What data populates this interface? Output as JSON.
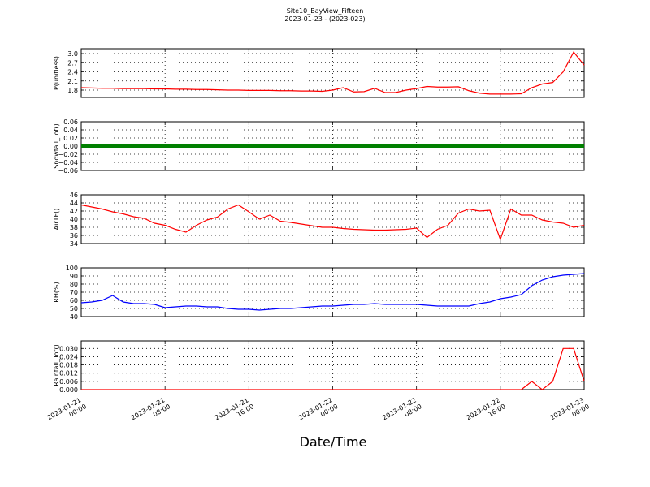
{
  "figure": {
    "title": "Site10_BayView_Fifteen",
    "subtitle": "2023-01-23 - (2023-023)",
    "xlabel": "Date/Time"
  },
  "chart_data": [
    {
      "type": "line",
      "ylabel": "P(unitless)",
      "color": "#ff0000",
      "xlim": [
        "2023-01-21 00:00",
        "2023-01-23 00:00"
      ],
      "xticks": [
        "2023-01-21 00:00",
        "2023-01-21 08:00",
        "2023-01-21 16:00",
        "2023-01-22 00:00",
        "2023-01-22 08:00",
        "2023-01-22 16:00",
        "2023-01-23 00:00"
      ],
      "ylim": [
        1.56,
        3.16
      ],
      "yticks": [
        1.8,
        2.1,
        2.4,
        2.7,
        {
          "value": 3,
          "label": "3.0"
        }
      ],
      "grid": true,
      "x": [
        "2023-01-21 00:00",
        "2023-01-21 01:00",
        "2023-01-21 02:00",
        "2023-01-21 03:00",
        "2023-01-21 04:00",
        "2023-01-21 05:00",
        "2023-01-21 06:00",
        "2023-01-21 07:00",
        "2023-01-21 08:00",
        "2023-01-21 09:00",
        "2023-01-21 10:00",
        "2023-01-21 11:00",
        "2023-01-21 12:00",
        "2023-01-21 13:00",
        "2023-01-21 14:00",
        "2023-01-21 15:00",
        "2023-01-21 16:00",
        "2023-01-21 17:00",
        "2023-01-21 18:00",
        "2023-01-21 19:00",
        "2023-01-21 20:00",
        "2023-01-21 21:00",
        "2023-01-21 22:00",
        "2023-01-21 23:00",
        "2023-01-22 00:00",
        "2023-01-22 01:00",
        "2023-01-22 02:00",
        "2023-01-22 03:00",
        "2023-01-22 04:00",
        "2023-01-22 05:00",
        "2023-01-22 06:00",
        "2023-01-22 07:00",
        "2023-01-22 08:00",
        "2023-01-22 09:00",
        "2023-01-22 10:00",
        "2023-01-22 11:00",
        "2023-01-22 12:00",
        "2023-01-22 13:00",
        "2023-01-22 14:00",
        "2023-01-22 15:00",
        "2023-01-22 16:00",
        "2023-01-22 17:00",
        "2023-01-22 18:00",
        "2023-01-22 19:00",
        "2023-01-22 20:00",
        "2023-01-22 21:00",
        "2023-01-22 22:00",
        "2023-01-22 23:00",
        "2023-01-23 00:00"
      ],
      "values": [
        1.88,
        1.87,
        1.86,
        1.86,
        1.85,
        1.85,
        1.85,
        1.84,
        1.84,
        1.83,
        1.83,
        1.82,
        1.82,
        1.81,
        1.8,
        1.8,
        1.79,
        1.79,
        1.79,
        1.78,
        1.78,
        1.77,
        1.77,
        1.76,
        1.8,
        1.88,
        1.74,
        1.75,
        1.86,
        1.72,
        1.72,
        1.8,
        1.85,
        1.92,
        1.9,
        1.9,
        1.91,
        1.78,
        1.7,
        1.67,
        1.67,
        1.67,
        1.68,
        1.88,
        2.0,
        2.05,
        2.4,
        3.05,
        2.62
      ]
    },
    {
      "type": "line",
      "ylabel": "Snowfall_Tot()",
      "color": "#008000",
      "xlim": [
        "2023-01-21 00:00",
        "2023-01-23 00:00"
      ],
      "xticks": [
        "2023-01-21 00:00",
        "2023-01-21 08:00",
        "2023-01-21 16:00",
        "2023-01-22 00:00",
        "2023-01-22 08:00",
        "2023-01-22 16:00",
        "2023-01-23 00:00"
      ],
      "ylim": [
        -0.06,
        0.06
      ],
      "yticks": [
        {
          "value": -0.06,
          "label": "−0.06"
        },
        {
          "value": -0.04,
          "label": "−0.04"
        },
        {
          "value": -0.02,
          "label": "−0.02"
        },
        {
          "value": 0,
          "label": "0.00"
        },
        0.02,
        0.04,
        0.06
      ],
      "grid": true,
      "x": [
        "2023-01-21 00:00",
        "2023-01-21 01:00",
        "2023-01-21 02:00",
        "2023-01-21 03:00",
        "2023-01-21 04:00",
        "2023-01-21 05:00",
        "2023-01-21 06:00",
        "2023-01-21 07:00",
        "2023-01-21 08:00",
        "2023-01-21 09:00",
        "2023-01-21 10:00",
        "2023-01-21 11:00",
        "2023-01-21 12:00",
        "2023-01-21 13:00",
        "2023-01-21 14:00",
        "2023-01-21 15:00",
        "2023-01-21 16:00",
        "2023-01-21 17:00",
        "2023-01-21 18:00",
        "2023-01-21 19:00",
        "2023-01-21 20:00",
        "2023-01-21 21:00",
        "2023-01-21 22:00",
        "2023-01-21 23:00",
        "2023-01-22 00:00",
        "2023-01-22 01:00",
        "2023-01-22 02:00",
        "2023-01-22 03:00",
        "2023-01-22 04:00",
        "2023-01-22 05:00",
        "2023-01-22 06:00",
        "2023-01-22 07:00",
        "2023-01-22 08:00",
        "2023-01-22 09:00",
        "2023-01-22 10:00",
        "2023-01-22 11:00",
        "2023-01-22 12:00",
        "2023-01-22 13:00",
        "2023-01-22 14:00",
        "2023-01-22 15:00",
        "2023-01-22 16:00",
        "2023-01-22 17:00",
        "2023-01-22 18:00",
        "2023-01-22 19:00",
        "2023-01-22 20:00",
        "2023-01-22 21:00",
        "2023-01-22 22:00",
        "2023-01-22 23:00",
        "2023-01-23 00:00"
      ],
      "values": [
        0,
        0,
        0,
        0,
        0,
        0,
        0,
        0,
        0,
        0,
        0,
        0,
        0,
        0,
        0,
        0,
        0,
        0,
        0,
        0,
        0,
        0,
        0,
        0,
        0,
        0,
        0,
        0,
        0,
        0,
        0,
        0,
        0,
        0,
        0,
        0,
        0,
        0,
        0,
        0,
        0,
        0,
        0,
        0,
        0,
        0,
        0,
        0,
        0
      ]
    },
    {
      "type": "line",
      "ylabel": "AirTF()",
      "color": "#ff0000",
      "xlim": [
        "2023-01-21 00:00",
        "2023-01-23 00:00"
      ],
      "xticks": [
        "2023-01-21 00:00",
        "2023-01-21 08:00",
        "2023-01-21 16:00",
        "2023-01-22 00:00",
        "2023-01-22 08:00",
        "2023-01-22 16:00",
        "2023-01-23 00:00"
      ],
      "ylim": [
        34,
        46
      ],
      "yticks": [
        34,
        36,
        38,
        40,
        42,
        44,
        46
      ],
      "grid": true,
      "x": [
        "2023-01-21 00:00",
        "2023-01-21 01:00",
        "2023-01-21 02:00",
        "2023-01-21 03:00",
        "2023-01-21 04:00",
        "2023-01-21 05:00",
        "2023-01-21 06:00",
        "2023-01-21 07:00",
        "2023-01-21 08:00",
        "2023-01-21 09:00",
        "2023-01-21 10:00",
        "2023-01-21 11:00",
        "2023-01-21 12:00",
        "2023-01-21 13:00",
        "2023-01-21 14:00",
        "2023-01-21 15:00",
        "2023-01-21 16:00",
        "2023-01-21 17:00",
        "2023-01-21 18:00",
        "2023-01-21 19:00",
        "2023-01-21 20:00",
        "2023-01-21 21:00",
        "2023-01-21 22:00",
        "2023-01-21 23:00",
        "2023-01-22 00:00",
        "2023-01-22 01:00",
        "2023-01-22 02:00",
        "2023-01-22 03:00",
        "2023-01-22 04:00",
        "2023-01-22 05:00",
        "2023-01-22 06:00",
        "2023-01-22 07:00",
        "2023-01-22 08:00",
        "2023-01-22 09:00",
        "2023-01-22 10:00",
        "2023-01-22 11:00",
        "2023-01-22 12:00",
        "2023-01-22 13:00",
        "2023-01-22 14:00",
        "2023-01-22 15:00",
        "2023-01-22 16:00",
        "2023-01-22 17:00",
        "2023-01-22 18:00",
        "2023-01-22 19:00",
        "2023-01-22 20:00",
        "2023-01-22 21:00",
        "2023-01-22 22:00",
        "2023-01-22 23:00",
        "2023-01-23 00:00"
      ],
      "values": [
        43.5,
        43,
        42.5,
        41.8,
        41.3,
        40.6,
        40.2,
        39,
        38.5,
        37.5,
        36.8,
        38.5,
        39.8,
        40.5,
        42.5,
        43.5,
        41.8,
        40,
        41,
        39.5,
        39.2,
        38.8,
        38.4,
        38,
        38,
        37.7,
        37.5,
        37.4,
        37.3,
        37.3,
        37.4,
        37.5,
        37.8,
        35.5,
        37.5,
        38.5,
        41.5,
        42.5,
        42,
        42.2,
        35,
        42.5,
        41,
        41,
        39.8,
        39.3,
        39,
        38,
        38.5
      ]
    },
    {
      "type": "line",
      "ylabel": "RH(%)",
      "color": "#0000ff",
      "xlim": [
        "2023-01-21 00:00",
        "2023-01-23 00:00"
      ],
      "xticks": [
        "2023-01-21 00:00",
        "2023-01-21 08:00",
        "2023-01-21 16:00",
        "2023-01-22 00:00",
        "2023-01-22 08:00",
        "2023-01-22 16:00",
        "2023-01-23 00:00"
      ],
      "ylim": [
        40,
        100
      ],
      "yticks": [
        40,
        50,
        60,
        70,
        80,
        90,
        100
      ],
      "grid": true,
      "x": [
        "2023-01-21 00:00",
        "2023-01-21 01:00",
        "2023-01-21 02:00",
        "2023-01-21 03:00",
        "2023-01-21 04:00",
        "2023-01-21 05:00",
        "2023-01-21 06:00",
        "2023-01-21 07:00",
        "2023-01-21 08:00",
        "2023-01-21 09:00",
        "2023-01-21 10:00",
        "2023-01-21 11:00",
        "2023-01-21 12:00",
        "2023-01-21 13:00",
        "2023-01-21 14:00",
        "2023-01-21 15:00",
        "2023-01-21 16:00",
        "2023-01-21 17:00",
        "2023-01-21 18:00",
        "2023-01-21 19:00",
        "2023-01-21 20:00",
        "2023-01-21 21:00",
        "2023-01-21 22:00",
        "2023-01-21 23:00",
        "2023-01-22 00:00",
        "2023-01-22 01:00",
        "2023-01-22 02:00",
        "2023-01-22 03:00",
        "2023-01-22 04:00",
        "2023-01-22 05:00",
        "2023-01-22 06:00",
        "2023-01-22 07:00",
        "2023-01-22 08:00",
        "2023-01-22 09:00",
        "2023-01-22 10:00",
        "2023-01-22 11:00",
        "2023-01-22 12:00",
        "2023-01-22 13:00",
        "2023-01-22 14:00",
        "2023-01-22 15:00",
        "2023-01-22 16:00",
        "2023-01-22 17:00",
        "2023-01-22 18:00",
        "2023-01-22 19:00",
        "2023-01-22 20:00",
        "2023-01-22 21:00",
        "2023-01-22 22:00",
        "2023-01-22 23:00",
        "2023-01-23 00:00"
      ],
      "values": [
        57,
        58,
        60,
        66,
        58,
        56,
        56,
        55,
        51,
        52,
        53,
        53,
        52,
        52,
        50,
        49,
        49,
        48,
        49,
        50,
        50,
        51,
        52,
        53,
        53,
        54,
        55,
        55,
        56,
        55,
        55,
        55,
        55,
        54,
        53,
        53,
        53,
        53,
        56,
        58,
        62,
        64,
        67,
        78,
        85,
        89,
        91,
        92,
        93
      ]
    },
    {
      "type": "line",
      "ylabel": "Rainfall_Tot()",
      "color": "#ff0000",
      "xlim": [
        "2023-01-21 00:00",
        "2023-01-23 00:00"
      ],
      "xticks": [
        "2023-01-21 00:00",
        "2023-01-21 08:00",
        "2023-01-21 16:00",
        "2023-01-22 00:00",
        "2023-01-22 08:00",
        "2023-01-22 16:00",
        "2023-01-23 00:00"
      ],
      "ylim": [
        0,
        0.0355
      ],
      "yticks": [
        {
          "value": 0,
          "label": "0.000"
        },
        0.006,
        0.012,
        0.018,
        0.024,
        {
          "value": 0.03,
          "label": "0.030"
        }
      ],
      "grid": true,
      "x": [
        "2023-01-21 00:00",
        "2023-01-21 01:00",
        "2023-01-21 02:00",
        "2023-01-21 03:00",
        "2023-01-21 04:00",
        "2023-01-21 05:00",
        "2023-01-21 06:00",
        "2023-01-21 07:00",
        "2023-01-21 08:00",
        "2023-01-21 09:00",
        "2023-01-21 10:00",
        "2023-01-21 11:00",
        "2023-01-21 12:00",
        "2023-01-21 13:00",
        "2023-01-21 14:00",
        "2023-01-21 15:00",
        "2023-01-21 16:00",
        "2023-01-21 17:00",
        "2023-01-21 18:00",
        "2023-01-21 19:00",
        "2023-01-21 20:00",
        "2023-01-21 21:00",
        "2023-01-21 22:00",
        "2023-01-21 23:00",
        "2023-01-22 00:00",
        "2023-01-22 01:00",
        "2023-01-22 02:00",
        "2023-01-22 03:00",
        "2023-01-22 04:00",
        "2023-01-22 05:00",
        "2023-01-22 06:00",
        "2023-01-22 07:00",
        "2023-01-22 08:00",
        "2023-01-22 09:00",
        "2023-01-22 10:00",
        "2023-01-22 11:00",
        "2023-01-22 12:00",
        "2023-01-22 13:00",
        "2023-01-22 14:00",
        "2023-01-22 15:00",
        "2023-01-22 16:00",
        "2023-01-22 17:00",
        "2023-01-22 18:00",
        "2023-01-22 19:00",
        "2023-01-22 20:00",
        "2023-01-22 21:00",
        "2023-01-22 22:00",
        "2023-01-22 23:00",
        "2023-01-23 00:00"
      ],
      "values": [
        0,
        0,
        0,
        0,
        0,
        0,
        0,
        0,
        0,
        0,
        0,
        0,
        0,
        0,
        0,
        0,
        0,
        0,
        0,
        0,
        0,
        0,
        0,
        0,
        0,
        0,
        0,
        0,
        0,
        0,
        0,
        0,
        0,
        0,
        0,
        0,
        0,
        0,
        0,
        0,
        0,
        0,
        0,
        0.006,
        0,
        0.006,
        0.03,
        0.03,
        0.006
      ]
    }
  ]
}
